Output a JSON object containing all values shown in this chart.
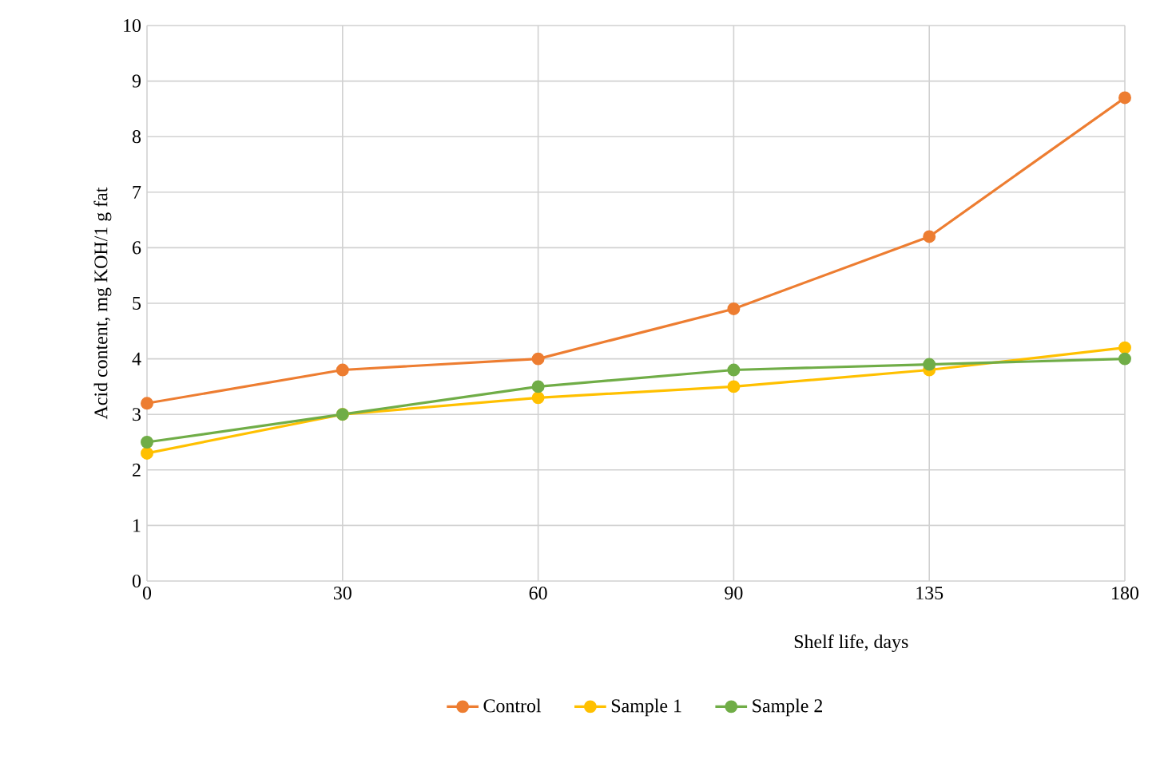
{
  "chart_data": {
    "type": "line",
    "xlabel": "Shelf life, days",
    "ylabel": "Acid content, mg KOH/1 g fat",
    "categories": [
      "0",
      "30",
      "60",
      "90",
      "135",
      "180"
    ],
    "series": [
      {
        "name": "Control",
        "color": "#ed7d31",
        "values": [
          3.2,
          3.8,
          4.0,
          4.9,
          6.2,
          8.7
        ]
      },
      {
        "name": "Sample 1",
        "color": "#ffc000",
        "values": [
          2.3,
          3.0,
          3.3,
          3.5,
          3.8,
          4.2
        ]
      },
      {
        "name": "Sample 2",
        "color": "#70ad47",
        "values": [
          2.5,
          3.0,
          3.5,
          3.8,
          3.9,
          4.0
        ]
      }
    ],
    "ylim": [
      0,
      10
    ],
    "yticks": [
      0,
      1,
      2,
      3,
      4,
      5,
      6,
      7,
      8,
      9,
      10
    ],
    "grid": true,
    "legend": "bottom",
    "marker": "circle",
    "line_style": "solid"
  }
}
